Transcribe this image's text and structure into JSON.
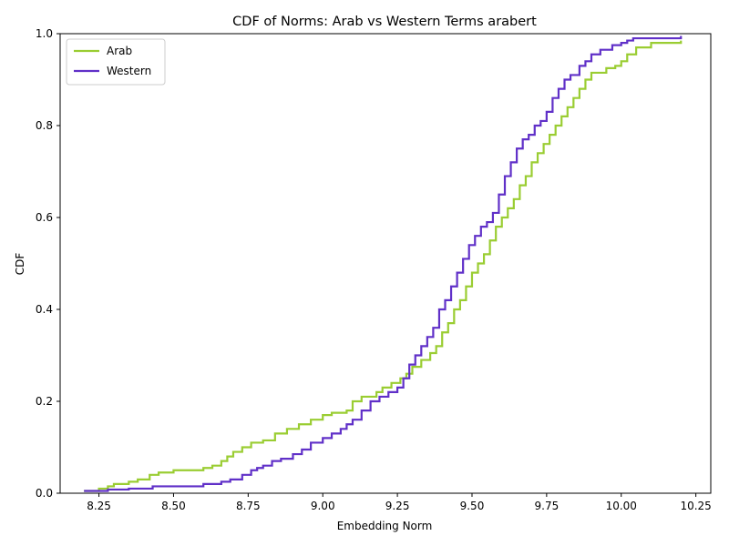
{
  "chart_data": {
    "type": "line",
    "title": "CDF of Norms: Arab vs Western Terms arabert",
    "xlabel": "Embedding Norm",
    "ylabel": "CDF",
    "xlim": [
      8.12,
      10.3
    ],
    "ylim": [
      0.0,
      1.0
    ],
    "xticks": [
      "8.25",
      "8.50",
      "8.75",
      "9.00",
      "9.25",
      "9.50",
      "9.75",
      "10.00",
      "10.25"
    ],
    "yticks": [
      "0.0",
      "0.2",
      "0.4",
      "0.6",
      "0.8",
      "1.0"
    ],
    "grid": false,
    "legend_position": "top-left",
    "series": [
      {
        "name": "Arab",
        "color": "#9acd32",
        "x": [
          8.2,
          8.25,
          8.28,
          8.3,
          8.35,
          8.38,
          8.42,
          8.45,
          8.5,
          8.53,
          8.6,
          8.63,
          8.66,
          8.68,
          8.7,
          8.73,
          8.76,
          8.8,
          8.84,
          8.88,
          8.92,
          8.96,
          9.0,
          9.03,
          9.08,
          9.1,
          9.13,
          9.18,
          9.2,
          9.23,
          9.26,
          9.28,
          9.3,
          9.33,
          9.36,
          9.38,
          9.4,
          9.42,
          9.44,
          9.46,
          9.48,
          9.5,
          9.52,
          9.54,
          9.56,
          9.58,
          9.6,
          9.62,
          9.64,
          9.66,
          9.68,
          9.7,
          9.72,
          9.74,
          9.76,
          9.78,
          9.8,
          9.82,
          9.84,
          9.86,
          9.88,
          9.9,
          9.95,
          9.98,
          10.0,
          10.02,
          10.05,
          10.1,
          10.2
        ],
        "y": [
          0.005,
          0.01,
          0.015,
          0.02,
          0.025,
          0.03,
          0.04,
          0.045,
          0.05,
          0.05,
          0.055,
          0.06,
          0.07,
          0.08,
          0.09,
          0.1,
          0.11,
          0.115,
          0.13,
          0.14,
          0.15,
          0.16,
          0.17,
          0.175,
          0.18,
          0.2,
          0.21,
          0.22,
          0.23,
          0.24,
          0.25,
          0.26,
          0.275,
          0.29,
          0.305,
          0.32,
          0.35,
          0.37,
          0.4,
          0.42,
          0.45,
          0.48,
          0.5,
          0.52,
          0.55,
          0.58,
          0.6,
          0.62,
          0.64,
          0.67,
          0.69,
          0.72,
          0.74,
          0.76,
          0.78,
          0.8,
          0.82,
          0.84,
          0.86,
          0.88,
          0.9,
          0.915,
          0.925,
          0.93,
          0.94,
          0.955,
          0.97,
          0.98,
          0.985
        ]
      },
      {
        "name": "Western",
        "color": "#6030c8",
        "x": [
          8.2,
          8.28,
          8.35,
          8.43,
          8.5,
          8.55,
          8.6,
          8.66,
          8.69,
          8.73,
          8.76,
          8.78,
          8.8,
          8.83,
          8.86,
          8.9,
          8.93,
          8.96,
          9.0,
          9.03,
          9.06,
          9.08,
          9.1,
          9.13,
          9.16,
          9.19,
          9.22,
          9.25,
          9.27,
          9.29,
          9.31,
          9.33,
          9.35,
          9.37,
          9.39,
          9.41,
          9.43,
          9.45,
          9.47,
          9.49,
          9.51,
          9.53,
          9.55,
          9.57,
          9.59,
          9.61,
          9.63,
          9.65,
          9.67,
          9.69,
          9.71,
          9.73,
          9.75,
          9.77,
          9.79,
          9.81,
          9.83,
          9.86,
          9.88,
          9.9,
          9.93,
          9.97,
          10.0,
          10.02,
          10.04,
          10.08,
          10.2
        ],
        "y": [
          0.005,
          0.008,
          0.01,
          0.015,
          0.015,
          0.015,
          0.02,
          0.025,
          0.03,
          0.04,
          0.05,
          0.055,
          0.06,
          0.07,
          0.075,
          0.085,
          0.095,
          0.11,
          0.12,
          0.13,
          0.14,
          0.15,
          0.16,
          0.18,
          0.2,
          0.21,
          0.22,
          0.23,
          0.25,
          0.28,
          0.3,
          0.32,
          0.34,
          0.36,
          0.4,
          0.42,
          0.45,
          0.48,
          0.51,
          0.54,
          0.56,
          0.58,
          0.59,
          0.61,
          0.65,
          0.69,
          0.72,
          0.75,
          0.77,
          0.78,
          0.8,
          0.81,
          0.83,
          0.86,
          0.88,
          0.9,
          0.91,
          0.93,
          0.94,
          0.955,
          0.965,
          0.975,
          0.98,
          0.985,
          0.99,
          0.99,
          0.995
        ]
      }
    ]
  }
}
